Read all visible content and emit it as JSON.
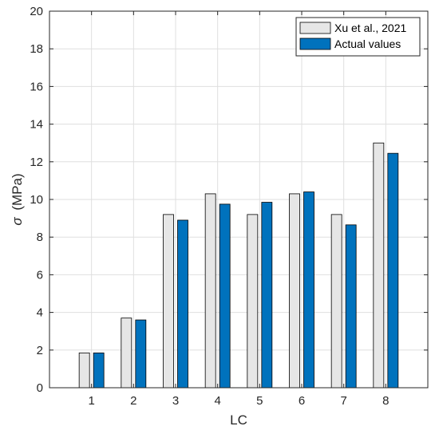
{
  "chart_data": {
    "type": "bar",
    "xlabel": "LC",
    "ylabel_symbol": "σ",
    "ylabel_unit": "(MPa)",
    "ylim": [
      0,
      20
    ],
    "yticks": [
      0,
      2,
      4,
      6,
      8,
      10,
      12,
      14,
      16,
      18,
      20
    ],
    "categories": [
      "1",
      "2",
      "3",
      "4",
      "5",
      "6",
      "7",
      "8"
    ],
    "grid": true,
    "legend_position": "top-right",
    "series": [
      {
        "name": "Xu et al., 2021",
        "color": "#e6e6e6",
        "values": [
          1.85,
          3.7,
          9.2,
          10.3,
          9.2,
          10.3,
          9.2,
          13.0
        ]
      },
      {
        "name": "Actual values",
        "color": "#0072bd",
        "values": [
          1.85,
          3.6,
          8.9,
          9.75,
          9.85,
          10.4,
          8.65,
          12.45
        ]
      }
    ]
  }
}
